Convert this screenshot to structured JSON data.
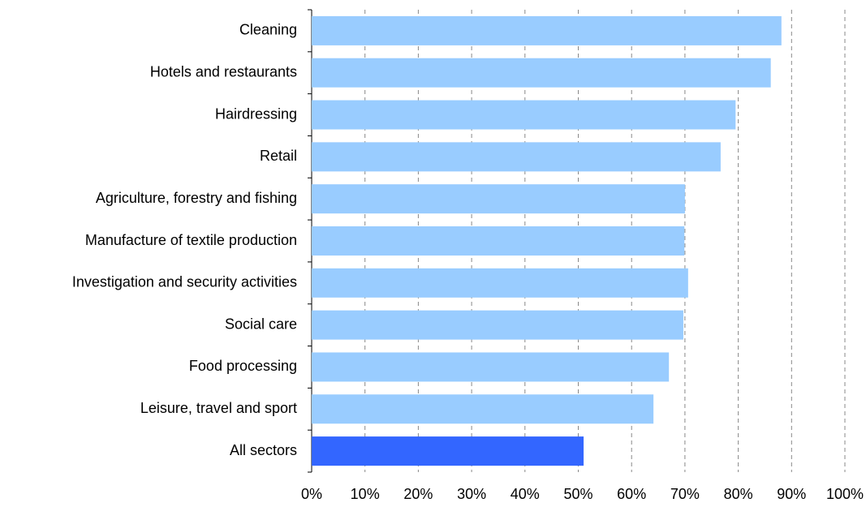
{
  "chart_data": {
    "type": "bar",
    "orientation": "horizontal",
    "categories": [
      "Cleaning",
      "Hotels and restaurants",
      "Hairdressing",
      "Retail",
      "Agriculture, forestry and fishing",
      "Manufacture of textile production",
      "Investigation and security activities",
      "Social care",
      "Food processing",
      "Leisure, travel and sport",
      "All sectors"
    ],
    "values": [
      88.1,
      86.1,
      79.5,
      76.7,
      70.0,
      69.9,
      70.6,
      69.7,
      67.0,
      64.1,
      51.0
    ],
    "colors": [
      "#99ccff",
      "#99ccff",
      "#99ccff",
      "#99ccff",
      "#99ccff",
      "#99ccff",
      "#99ccff",
      "#99ccff",
      "#99ccff",
      "#99ccff",
      "#3366ff"
    ],
    "xlim": [
      0,
      100
    ],
    "xticks": [
      {
        "value": 0,
        "label": "0%"
      },
      {
        "value": 10,
        "label": "10%"
      },
      {
        "value": 20,
        "label": "20%"
      },
      {
        "value": 30,
        "label": "30%"
      },
      {
        "value": 40,
        "label": "40%"
      },
      {
        "value": 50,
        "label": "50%"
      },
      {
        "value": 60,
        "label": "60%"
      },
      {
        "value": 70,
        "label": "70%"
      },
      {
        "value": 80,
        "label": "80%"
      },
      {
        "value": 90,
        "label": "90%"
      },
      {
        "value": 100,
        "label": "100%"
      }
    ],
    "grid": true
  }
}
